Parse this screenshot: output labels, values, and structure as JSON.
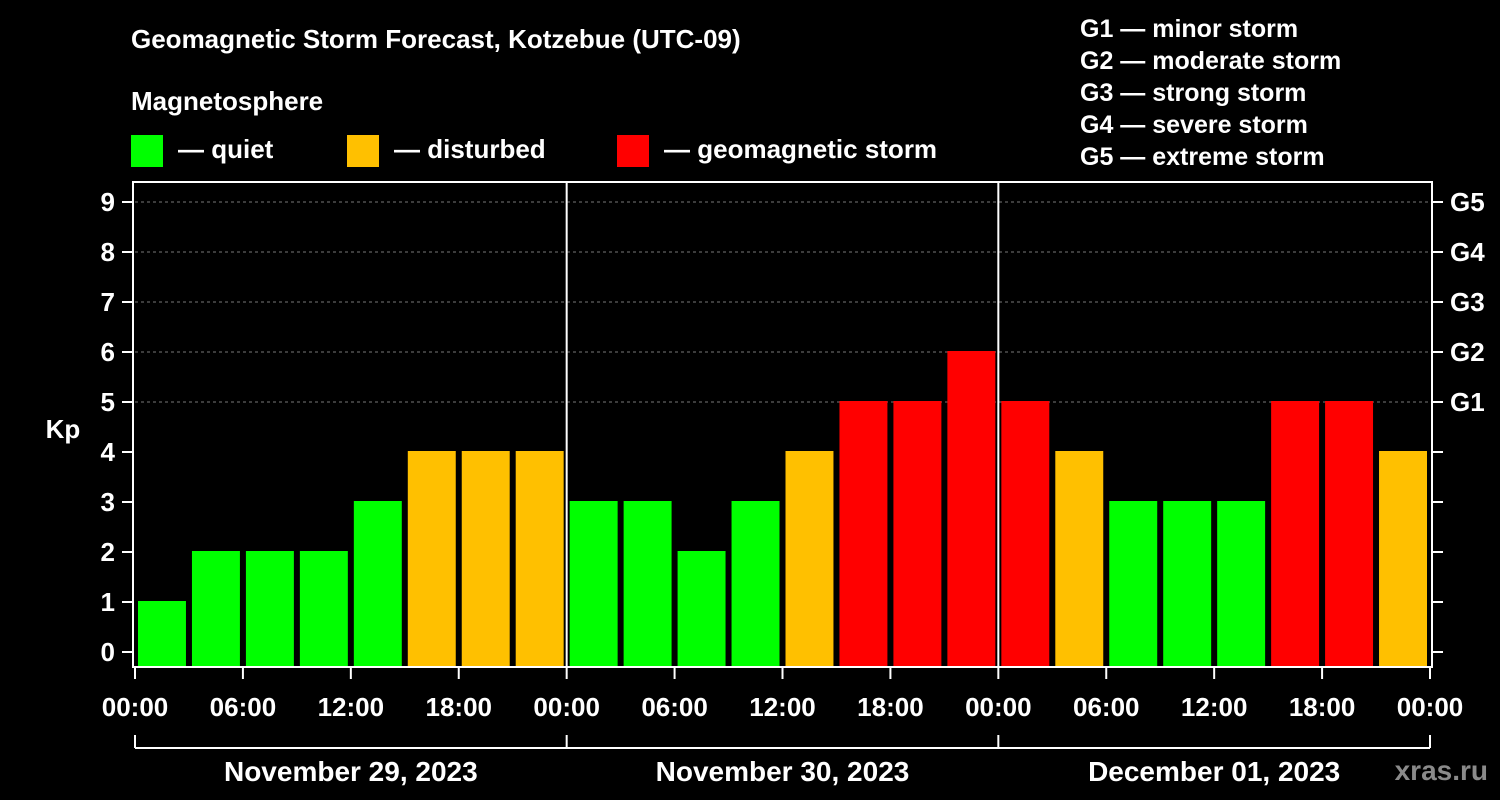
{
  "title": "Geomagnetic Storm Forecast, Kotzebue (UTC-09)",
  "legend": {
    "heading": "Magnetosphere",
    "items": [
      {
        "label": "— quiet",
        "color": "#00ff00"
      },
      {
        "label": "— disturbed",
        "color": "#ffc000"
      },
      {
        "label": "— geomagnetic storm",
        "color": "#ff0000"
      }
    ]
  },
  "storm_scale": [
    "G1 — minor storm",
    "G2 — moderate storm",
    "G3 — strong storm",
    "G4 — severe storm",
    "G5 — extreme storm"
  ],
  "watermark": "xras.ru",
  "chart_data": {
    "type": "bar",
    "title": "Geomagnetic Storm Forecast, Kotzebue (UTC-09)",
    "ylabel": "Kp",
    "ylim": [
      0,
      9
    ],
    "yticks": [
      "0",
      "1",
      "2",
      "3",
      "4",
      "5",
      "6",
      "7",
      "8",
      "9"
    ],
    "right_ticks": [
      {
        "kp": 5,
        "label": "G1"
      },
      {
        "kp": 6,
        "label": "G2"
      },
      {
        "kp": 7,
        "label": "G3"
      },
      {
        "kp": 8,
        "label": "G4"
      },
      {
        "kp": 9,
        "label": "G5"
      }
    ],
    "xtick_labels": [
      "00:00",
      "06:00",
      "12:00",
      "18:00",
      "00:00",
      "06:00",
      "12:00",
      "18:00",
      "00:00",
      "06:00",
      "12:00",
      "18:00",
      "00:00"
    ],
    "days": [
      "November 29, 2023",
      "November 30, 2023",
      "December 01, 2023"
    ],
    "interval_hours": 3,
    "values": [
      1,
      2,
      2,
      2,
      3,
      4,
      4,
      4,
      3,
      3,
      2,
      3,
      4,
      5,
      5,
      6,
      5,
      4,
      3,
      3,
      3,
      5,
      5,
      4
    ],
    "colors": {
      "quiet": "#00ff00",
      "disturbed": "#ffc000",
      "storm": "#ff0000"
    },
    "thresholds": {
      "disturbed": 4,
      "storm": 5
    },
    "grid": true
  }
}
